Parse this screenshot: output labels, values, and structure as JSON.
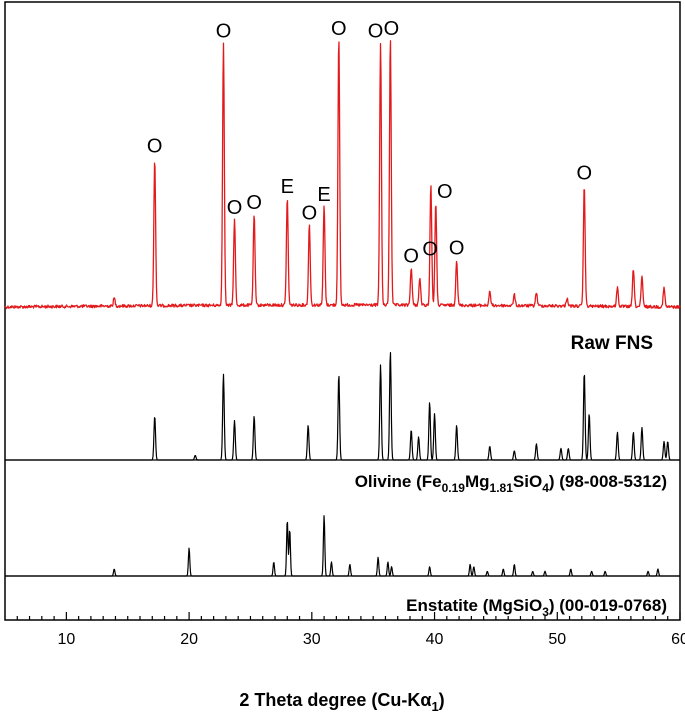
{
  "chart_data": {
    "type": "line",
    "xlabel": {
      "main": "2 Theta degree (Cu-K",
      "alpha": "α",
      "sub": "1",
      "close": ")"
    },
    "xlim": [
      5,
      60
    ],
    "x_ticks": [
      "10",
      "20",
      "30",
      "40",
      "50",
      "60"
    ],
    "peak_markers": [
      {
        "x": 17.2,
        "label": "O"
      },
      {
        "x": 22.8,
        "label": "O"
      },
      {
        "x": 23.7,
        "label": "O"
      },
      {
        "x": 25.3,
        "label": "O"
      },
      {
        "x": 28.0,
        "label": "E"
      },
      {
        "x": 29.8,
        "label": "O"
      },
      {
        "x": 31.0,
        "label": "E"
      },
      {
        "x": 32.2,
        "label": "O"
      },
      {
        "x": 35.6,
        "label": "O"
      },
      {
        "x": 36.4,
        "label": "O"
      },
      {
        "x": 38.1,
        "label": "O"
      },
      {
        "x": 39.8,
        "label": "O"
      },
      {
        "x": 40.1,
        "label": "O"
      },
      {
        "x": 41.8,
        "label": "O"
      },
      {
        "x": 52.2,
        "label": "O"
      }
    ],
    "series": [
      {
        "name": "Raw FNS",
        "color": "#e31a1c",
        "peaks": [
          [
            13.9,
            0.03
          ],
          [
            17.2,
            0.55
          ],
          [
            22.8,
            0.98
          ],
          [
            23.7,
            0.32
          ],
          [
            25.3,
            0.34
          ],
          [
            28.0,
            0.4
          ],
          [
            29.8,
            0.3
          ],
          [
            31.0,
            0.37
          ],
          [
            32.2,
            1.0
          ],
          [
            35.6,
            0.98
          ],
          [
            36.4,
            1.0
          ],
          [
            38.1,
            0.14
          ],
          [
            38.8,
            0.1
          ],
          [
            39.7,
            0.45
          ],
          [
            40.1,
            0.38
          ],
          [
            41.8,
            0.17
          ],
          [
            44.5,
            0.05
          ],
          [
            46.5,
            0.04
          ],
          [
            48.3,
            0.05
          ],
          [
            50.8,
            0.03
          ],
          [
            52.2,
            0.45
          ],
          [
            54.9,
            0.07
          ],
          [
            56.2,
            0.14
          ],
          [
            56.9,
            0.11
          ],
          [
            58.7,
            0.07
          ]
        ]
      },
      {
        "name": "Olivine",
        "label": {
          "pre": "Olivine (Fe",
          "s1": "0.19",
          "m1": "Mg",
          "s2": "1.81",
          "m2": "SiO",
          "s3": "4",
          "post": ") (98-008-5312)"
        },
        "color": "#000000",
        "peaks": [
          [
            17.2,
            0.19
          ],
          [
            20.5,
            0.02
          ],
          [
            22.8,
            0.37
          ],
          [
            23.7,
            0.17
          ],
          [
            25.3,
            0.19
          ],
          [
            29.7,
            0.15
          ],
          [
            32.2,
            0.37
          ],
          [
            35.6,
            0.41
          ],
          [
            36.4,
            0.47
          ],
          [
            38.1,
            0.13
          ],
          [
            38.7,
            0.1
          ],
          [
            39.6,
            0.25
          ],
          [
            40.0,
            0.2
          ],
          [
            41.8,
            0.15
          ],
          [
            44.5,
            0.06
          ],
          [
            46.5,
            0.04
          ],
          [
            48.3,
            0.07
          ],
          [
            50.3,
            0.05
          ],
          [
            50.9,
            0.05
          ],
          [
            52.2,
            0.38
          ],
          [
            52.6,
            0.2
          ],
          [
            54.9,
            0.12
          ],
          [
            56.2,
            0.12
          ],
          [
            56.9,
            0.14
          ],
          [
            58.7,
            0.08
          ],
          [
            59.0,
            0.08
          ]
        ]
      },
      {
        "name": "Enstatite",
        "label": {
          "pre": "Enstatite (MgSiO",
          "s1": "3",
          "post": ") (00-019-0768)"
        },
        "color": "#000000",
        "peaks": [
          [
            13.9,
            0.03
          ],
          [
            20.0,
            0.12
          ],
          [
            26.9,
            0.06
          ],
          [
            28.0,
            0.24
          ],
          [
            28.2,
            0.2
          ],
          [
            31.0,
            0.26
          ],
          [
            31.6,
            0.06
          ],
          [
            33.1,
            0.05
          ],
          [
            35.4,
            0.08
          ],
          [
            36.2,
            0.06
          ],
          [
            36.5,
            0.04
          ],
          [
            39.6,
            0.04
          ],
          [
            42.9,
            0.05
          ],
          [
            43.2,
            0.04
          ],
          [
            44.3,
            0.02
          ],
          [
            45.6,
            0.03
          ],
          [
            46.5,
            0.05
          ],
          [
            48.0,
            0.02
          ],
          [
            49.0,
            0.02
          ],
          [
            51.1,
            0.03
          ],
          [
            52.8,
            0.02
          ],
          [
            53.9,
            0.02
          ],
          [
            57.4,
            0.02
          ],
          [
            58.2,
            0.03
          ]
        ]
      }
    ],
    "grid": false,
    "legend": "none"
  }
}
